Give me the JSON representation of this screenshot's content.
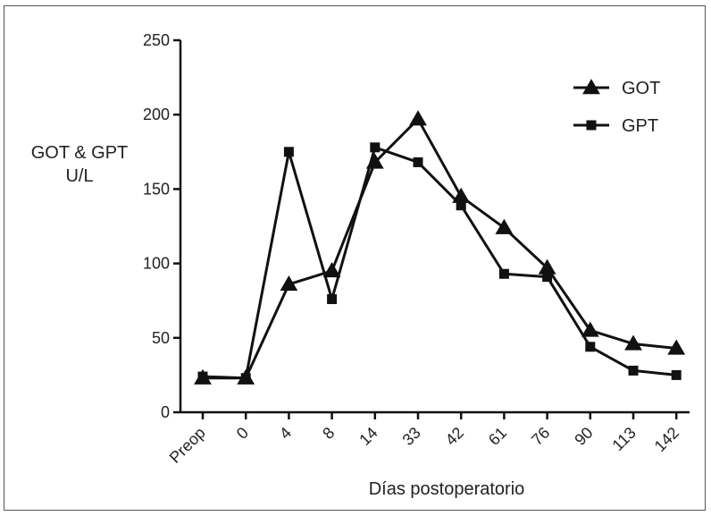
{
  "chart_data": {
    "type": "line",
    "title": "",
    "xlabel": "Días postoperatorio",
    "ylabel_lines": [
      "GOT & GPT",
      "U/L"
    ],
    "categories": [
      "Preop",
      "0",
      "4",
      "8",
      "14",
      "33",
      "42",
      "61",
      "76",
      "90",
      "113",
      "142"
    ],
    "ylim": [
      0,
      250
    ],
    "yticks": [
      0,
      50,
      100,
      150,
      200,
      250
    ],
    "grid": false,
    "legend_position": "top-right",
    "series": [
      {
        "name": "GOT",
        "marker": "triangle",
        "values": [
          23,
          23,
          86,
          95,
          168,
          197,
          145,
          124,
          97,
          55,
          46,
          43
        ]
      },
      {
        "name": "GPT",
        "marker": "square",
        "values": [
          24,
          23,
          175,
          76,
          178,
          168,
          139,
          93,
          91,
          44,
          28,
          25
        ]
      }
    ]
  }
}
